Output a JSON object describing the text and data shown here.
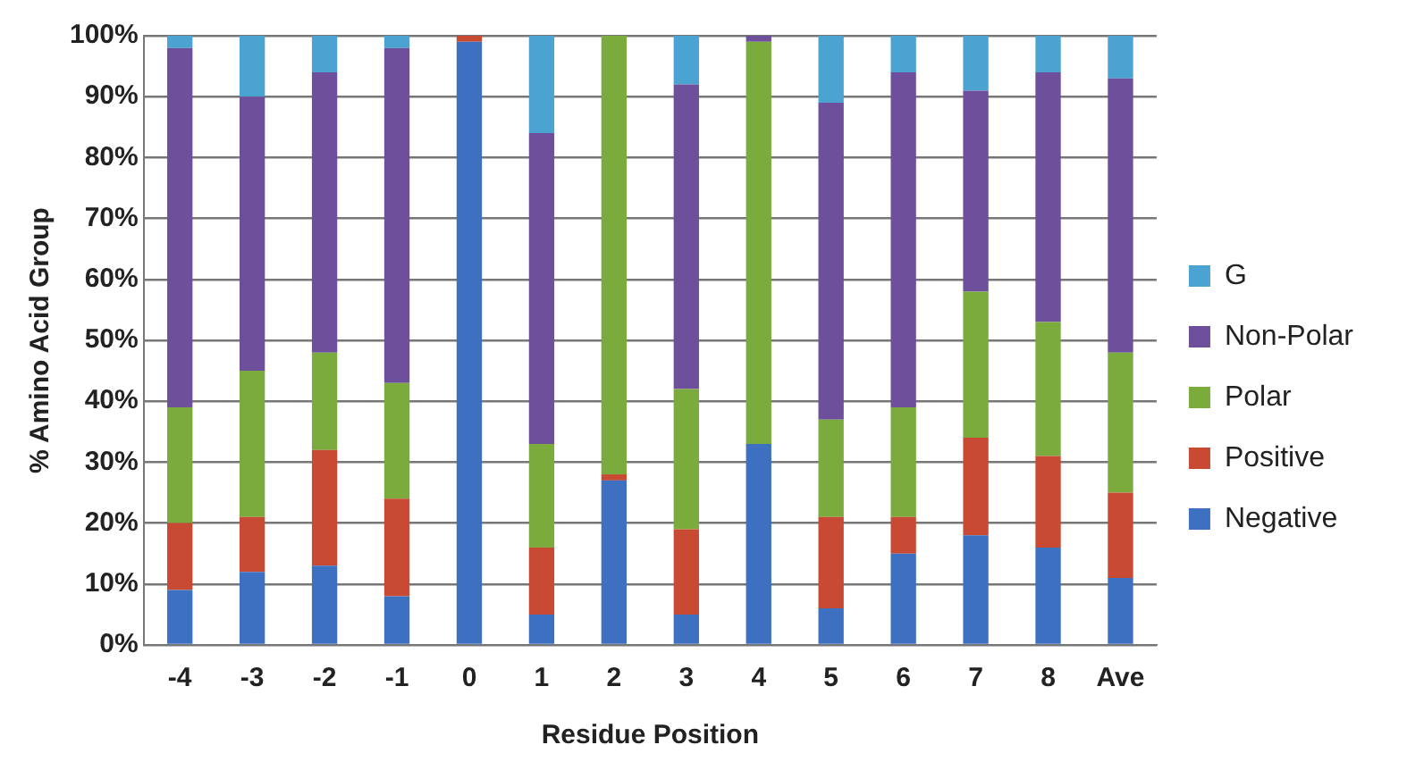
{
  "chart_data": {
    "type": "bar",
    "stacked": true,
    "xlabel": "Residue Position",
    "ylabel": "% Amino Acid Group",
    "categories": [
      "-4",
      "-3",
      "-2",
      "-1",
      "0",
      "1",
      "2",
      "3",
      "4",
      "5",
      "6",
      "7",
      "8",
      "Ave"
    ],
    "series": [
      {
        "name": "Negative",
        "color": "#3d70c0",
        "values": [
          9,
          12,
          13,
          8,
          99,
          5,
          27,
          5,
          33,
          6,
          15,
          18,
          16,
          11
        ]
      },
      {
        "name": "Positive",
        "color": "#c84a32",
        "values": [
          11,
          9,
          19,
          16,
          1,
          11,
          1,
          14,
          0,
          15,
          6,
          16,
          15,
          14
        ]
      },
      {
        "name": "Polar",
        "color": "#7aab3c",
        "values": [
          19,
          24,
          16,
          19,
          0,
          17,
          72,
          23,
          66,
          16,
          18,
          24,
          22,
          23
        ]
      },
      {
        "name": "Non-Polar",
        "color": "#6e4f9c",
        "values": [
          59,
          45,
          46,
          55,
          0,
          51,
          0,
          50,
          1,
          52,
          55,
          33,
          41,
          45
        ]
      },
      {
        "name": "G",
        "color": "#4aa3d0",
        "values": [
          2,
          10,
          6,
          2,
          0,
          16,
          0,
          8,
          0,
          11,
          6,
          9,
          6,
          7
        ]
      }
    ],
    "ylim": [
      0,
      100
    ],
    "yticks": [
      {
        "value": 0,
        "label": "0%"
      },
      {
        "value": 10,
        "label": "10%"
      },
      {
        "value": 20,
        "label": "20%"
      },
      {
        "value": 30,
        "label": "30%"
      },
      {
        "value": 40,
        "label": "40%"
      },
      {
        "value": 50,
        "label": "50%"
      },
      {
        "value": 60,
        "label": "60%"
      },
      {
        "value": 70,
        "label": "70%"
      },
      {
        "value": 80,
        "label": "80%"
      },
      {
        "value": 90,
        "label": "90%"
      },
      {
        "value": 100,
        "label": "100%"
      }
    ],
    "grid": "y",
    "legend": "right"
  }
}
